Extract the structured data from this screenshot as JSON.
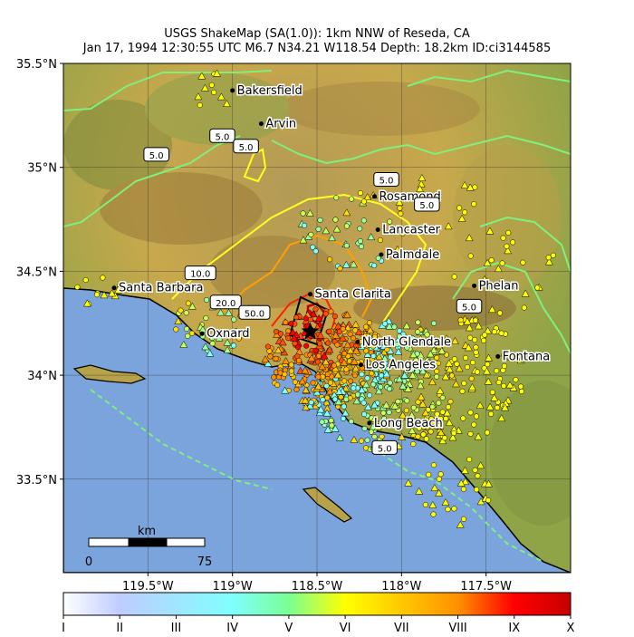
{
  "title": {
    "line1": "USGS ShakeMap (SA(1.0)): 1km NNW of Reseda, CA",
    "line2": "Jan 17, 1994 12:30:55 UTC M6.7 N34.21 W118.54 Depth: 18.2km ID:ci3144585"
  },
  "map": {
    "lon_range": [
      -120.0,
      -117.0
    ],
    "lat_range": [
      33.05,
      35.5
    ],
    "x_ticks": [
      {
        "value": -119.5,
        "label": "119.5°W"
      },
      {
        "value": -119.0,
        "label": "119°W"
      },
      {
        "value": -118.5,
        "label": "118.5°W"
      },
      {
        "value": -118.0,
        "label": "118°W"
      },
      {
        "value": -117.5,
        "label": "117.5°W"
      }
    ],
    "y_ticks": [
      {
        "value": 35.5,
        "label": "35.5°N"
      },
      {
        "value": 35.0,
        "label": "35°N"
      },
      {
        "value": 34.5,
        "label": "34.5°N"
      },
      {
        "value": 34.0,
        "label": "34°N"
      },
      {
        "value": 33.5,
        "label": "33.5°N"
      }
    ],
    "epicenter": {
      "lon": -118.54,
      "lat": 34.21
    },
    "cities": [
      {
        "name": "Bakersfield",
        "lon": -119.0,
        "lat": 35.37
      },
      {
        "name": "Arvin",
        "lon": -118.83,
        "lat": 35.21
      },
      {
        "name": "Rosamond",
        "lon": -118.16,
        "lat": 34.86
      },
      {
        "name": "Lancaster",
        "lon": -118.14,
        "lat": 34.7
      },
      {
        "name": "Palmdale",
        "lon": -118.12,
        "lat": 34.58
      },
      {
        "name": "Santa Barbara",
        "lon": -119.7,
        "lat": 34.42
      },
      {
        "name": "Santa Clarita",
        "lon": -118.54,
        "lat": 34.39
      },
      {
        "name": "Phelan",
        "lon": -117.57,
        "lat": 34.43
      },
      {
        "name": "Oxnard",
        "lon": -119.18,
        "lat": 34.2
      },
      {
        "name": "North Glendale",
        "lon": -118.26,
        "lat": 34.16
      },
      {
        "name": "Fontana",
        "lon": -117.43,
        "lat": 34.09
      },
      {
        "name": "Los Angeles",
        "lon": -118.24,
        "lat": 34.05
      },
      {
        "name": "Long Beach",
        "lon": -118.19,
        "lat": 33.77
      }
    ],
    "contour_labels": [
      {
        "text": "5.0",
        "lon": -119.06,
        "lat": 35.15
      },
      {
        "text": "5.0",
        "lon": -118.92,
        "lat": 35.1
      },
      {
        "text": "5.0",
        "lon": -119.45,
        "lat": 35.06
      },
      {
        "text": "5.0",
        "lon": -118.09,
        "lat": 34.94
      },
      {
        "text": "5.0",
        "lon": -117.85,
        "lat": 34.82
      },
      {
        "text": "10.0",
        "lon": -119.19,
        "lat": 34.49
      },
      {
        "text": "20.0",
        "lon": -119.04,
        "lat": 34.35
      },
      {
        "text": "50.0",
        "lon": -118.87,
        "lat": 34.3
      },
      {
        "text": "5.0",
        "lon": -117.6,
        "lat": 34.33
      },
      {
        "text": "5.0",
        "lon": -118.1,
        "lat": 33.65
      }
    ],
    "contour_colors": {
      "5.0": "#7ff07f",
      "10.0": "#ffff20",
      "20.0": "#ffa000",
      "50.0": "#ff2000"
    },
    "ocean_color": "#7ba3dc",
    "scale_bar": {
      "title": "km",
      "start": "0",
      "end": "75"
    }
  },
  "colorbar": {
    "labels": [
      "I",
      "II",
      "III",
      "IV",
      "V",
      "VI",
      "VII",
      "VIII",
      "IX",
      "X"
    ],
    "stops": [
      "#ffffff",
      "#bfccff",
      "#a0e6ff",
      "#80ffff",
      "#7aff93",
      "#ffff00",
      "#ffc800",
      "#ff9100",
      "#ff0000",
      "#c80000"
    ]
  }
}
